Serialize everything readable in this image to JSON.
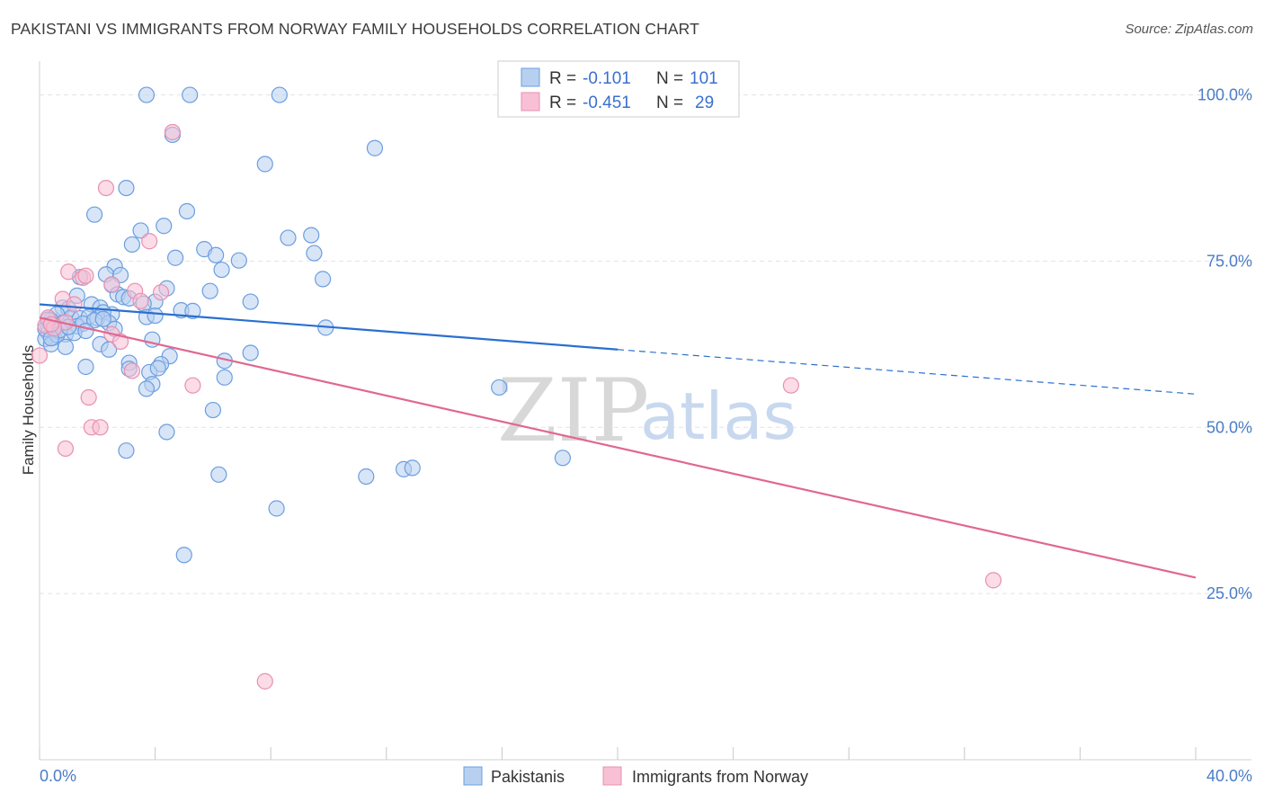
{
  "title": "PAKISTANI VS IMMIGRANTS FROM NORWAY FAMILY HOUSEHOLDS CORRELATION CHART",
  "source": "Source: ZipAtlas.com",
  "watermark": {
    "zip": "ZIP",
    "atlas": "atlas"
  },
  "colors": {
    "blue_fill": "#b8d0f0",
    "blue_stroke": "#6a9ee0",
    "blue_line": "#2a6fd0",
    "pink_fill": "#f8c0d4",
    "pink_stroke": "#e890b0",
    "pink_line": "#e06890",
    "tick": "#4a7cc7",
    "grid": "#e2e2e2"
  },
  "legend": {
    "rows": [
      {
        "r_label": "R =",
        "r_value": "-0.101",
        "n_label": "N =",
        "n_value": "101",
        "color": "blue"
      },
      {
        "r_label": "R =",
        "r_value": "-0.451",
        "n_label": "N =",
        "n_value": "29",
        "color": "pink"
      }
    ]
  },
  "chart_data": {
    "type": "scatter",
    "ylabel": "Family Households",
    "xlim": [
      0,
      40
    ],
    "ylim": [
      0,
      104
    ],
    "x_ticks": [
      "0.0%",
      "40.0%"
    ],
    "y_ticks": [
      {
        "v": 25,
        "label": "25.0%"
      },
      {
        "v": 50,
        "label": "50.0%"
      },
      {
        "v": 75,
        "label": "75.0%"
      },
      {
        "v": 100,
        "label": "100.0%"
      }
    ],
    "grid": true,
    "series": [
      {
        "name": "Pakistanis",
        "color": "blue",
        "trend": {
          "x0": 0,
          "y0": 68.5,
          "x1": 20,
          "y1": 61.7,
          "dash_to_x": 40,
          "dash_to_y": 55
        },
        "points": [
          [
            3.7,
            100
          ],
          [
            5.2,
            100
          ],
          [
            8.3,
            100
          ],
          [
            4.6,
            94
          ],
          [
            11.6,
            92
          ],
          [
            7.8,
            89.6
          ],
          [
            3.0,
            86
          ],
          [
            1.9,
            82
          ],
          [
            5.1,
            82.5
          ],
          [
            3.5,
            79.6
          ],
          [
            4.3,
            80.3
          ],
          [
            8.6,
            78.5
          ],
          [
            9.4,
            78.9
          ],
          [
            3.2,
            77.5
          ],
          [
            5.7,
            76.8
          ],
          [
            4.7,
            75.5
          ],
          [
            6.1,
            75.9
          ],
          [
            9.5,
            76.2
          ],
          [
            6.9,
            75.1
          ],
          [
            2.6,
            74.2
          ],
          [
            6.3,
            73.7
          ],
          [
            2.3,
            73
          ],
          [
            1.4,
            72.6
          ],
          [
            2.8,
            72.9
          ],
          [
            9.8,
            72.3
          ],
          [
            2.5,
            71.4
          ],
          [
            4.4,
            70.9
          ],
          [
            5.9,
            70.5
          ],
          [
            1.3,
            69.8
          ],
          [
            2.7,
            70
          ],
          [
            2.9,
            69.6
          ],
          [
            3.1,
            69.4
          ],
          [
            4.0,
            68.9
          ],
          [
            7.3,
            68.9
          ],
          [
            1.8,
            68.5
          ],
          [
            0.8,
            68
          ],
          [
            2.1,
            68
          ],
          [
            1.0,
            67.8
          ],
          [
            3.6,
            68.6
          ],
          [
            0.6,
            67
          ],
          [
            1.1,
            66.5
          ],
          [
            1.4,
            66.4
          ],
          [
            1.7,
            66.6
          ],
          [
            2.0,
            66.4
          ],
          [
            2.5,
            67
          ],
          [
            3.7,
            66.6
          ],
          [
            4.9,
            67.6
          ],
          [
            5.3,
            67.5
          ],
          [
            2.2,
            67.3
          ],
          [
            0.4,
            66.1
          ],
          [
            0.8,
            65.7
          ],
          [
            0.3,
            65
          ],
          [
            0.5,
            65.4
          ],
          [
            1.3,
            65.2
          ],
          [
            1.5,
            65.6
          ],
          [
            2.4,
            65.7
          ],
          [
            2.6,
            64.8
          ],
          [
            9.9,
            65
          ],
          [
            0.3,
            64.2
          ],
          [
            0.9,
            64
          ],
          [
            1.2,
            64.2
          ],
          [
            0.5,
            63.5
          ],
          [
            0.2,
            63.3
          ],
          [
            3.9,
            63.2
          ],
          [
            2.1,
            62.5
          ],
          [
            0.4,
            62.5
          ],
          [
            0.9,
            62.1
          ],
          [
            2.4,
            61.7
          ],
          [
            7.3,
            61.2
          ],
          [
            4.5,
            60.7
          ],
          [
            6.4,
            60
          ],
          [
            3.1,
            59.7
          ],
          [
            4.2,
            59.5
          ],
          [
            1.6,
            59.1
          ],
          [
            3.1,
            58.8
          ],
          [
            3.8,
            58.3
          ],
          [
            4.1,
            58.9
          ],
          [
            6.4,
            57.5
          ],
          [
            3.9,
            56.5
          ],
          [
            3.7,
            55.8
          ],
          [
            15.9,
            56
          ],
          [
            6.0,
            52.6
          ],
          [
            4.4,
            49.3
          ],
          [
            3.0,
            46.5
          ],
          [
            18.1,
            45.4
          ],
          [
            12.6,
            43.7
          ],
          [
            12.9,
            43.9
          ],
          [
            6.2,
            42.9
          ],
          [
            11.3,
            42.6
          ],
          [
            8.2,
            37.8
          ],
          [
            5.0,
            30.8
          ],
          [
            0.6,
            63.9
          ],
          [
            0.7,
            64.6
          ],
          [
            1.0,
            65.1
          ],
          [
            0.2,
            64.8
          ],
          [
            1.9,
            66.1
          ],
          [
            0.3,
            66.2
          ],
          [
            2.2,
            66.3
          ],
          [
            4.0,
            66.8
          ],
          [
            0.4,
            63.4
          ],
          [
            1.6,
            64.5
          ]
        ]
      },
      {
        "name": "Immigrants from Norway",
        "color": "pink",
        "trend": {
          "x0": 0,
          "y0": 66.5,
          "x1": 40,
          "y1": 27.4
        },
        "points": [
          [
            4.6,
            94.4
          ],
          [
            2.3,
            86
          ],
          [
            3.8,
            78
          ],
          [
            1.0,
            73.4
          ],
          [
            1.5,
            72.5
          ],
          [
            1.6,
            72.8
          ],
          [
            2.5,
            71.5
          ],
          [
            3.3,
            70.5
          ],
          [
            4.2,
            70.3
          ],
          [
            0.8,
            69.3
          ],
          [
            1.2,
            68.5
          ],
          [
            3.5,
            69
          ],
          [
            0.3,
            66.5
          ],
          [
            0.9,
            65.8
          ],
          [
            0.2,
            65.3
          ],
          [
            0.5,
            64.9
          ],
          [
            2.5,
            64
          ],
          [
            2.8,
            62.9
          ],
          [
            0.0,
            60.8
          ],
          [
            3.2,
            58.5
          ],
          [
            5.3,
            56.3
          ],
          [
            1.7,
            54.5
          ],
          [
            1.8,
            50
          ],
          [
            2.1,
            50
          ],
          [
            0.9,
            46.8
          ],
          [
            26.0,
            56.3
          ],
          [
            33.0,
            27
          ],
          [
            7.8,
            11.8
          ],
          [
            0.4,
            65.5
          ]
        ]
      }
    ]
  }
}
